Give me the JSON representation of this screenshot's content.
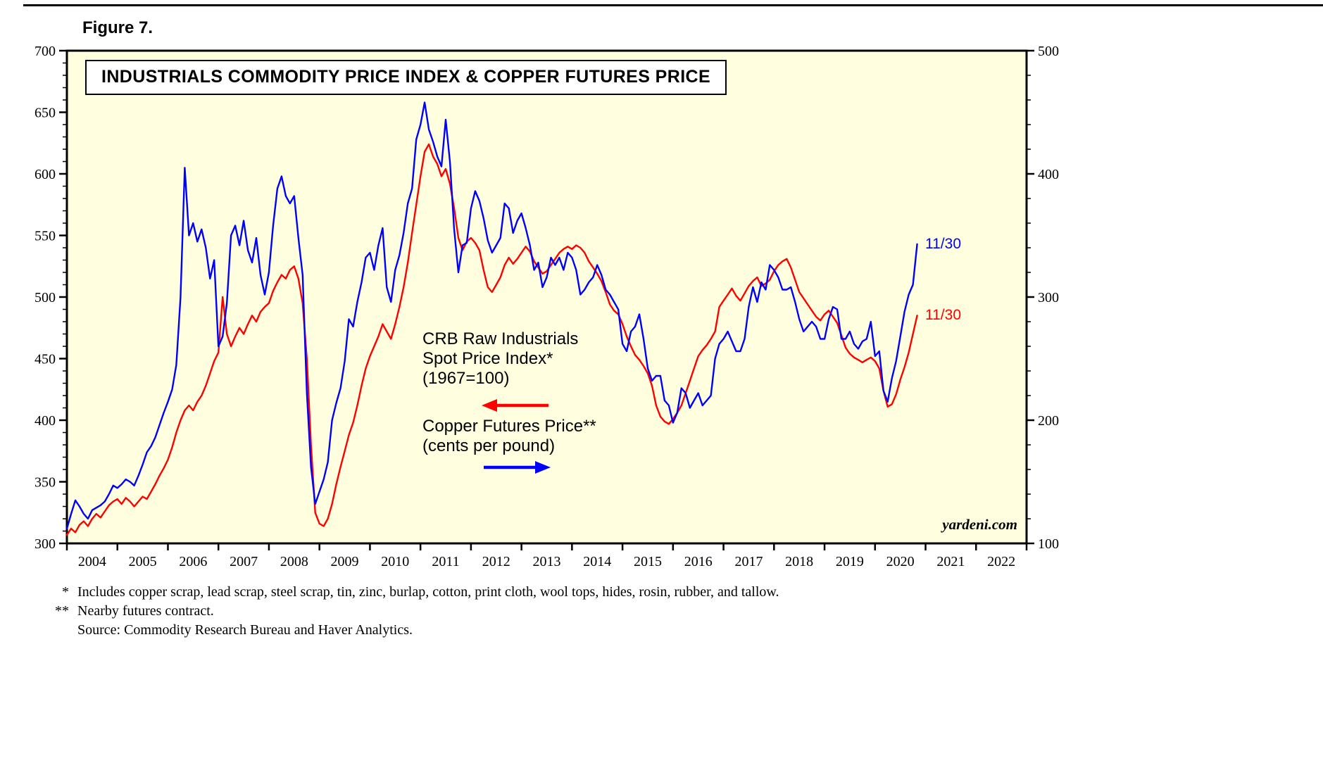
{
  "figure_label": "Figure 7.",
  "title": "INDUSTRIALS COMMODITY PRICE INDEX & COPPER FUTURES PRICE",
  "watermark": "yardeni.com",
  "annotations": {
    "red_series_label_lines": [
      "CRB Raw Industrials",
      "Spot Price Index*",
      "(1967=100)"
    ],
    "blue_series_label_lines": [
      "Copper Futures Price**",
      "(cents per pound)"
    ],
    "red_end_label": "11/30",
    "blue_end_label": "11/30"
  },
  "footnotes": [
    {
      "marker": "*",
      "text": "Includes copper scrap, lead scrap, steel scrap, tin, zinc, burlap, cotton, print cloth, wool tops, hides, rosin, rubber, and tallow."
    },
    {
      "marker": "**",
      "text": "Nearby futures contract."
    },
    {
      "marker": "",
      "text": "Source: Commodity Research Bureau and Haver Analytics."
    }
  ],
  "colors": {
    "red": "#FF0000",
    "blue": "#0000FF",
    "plot_bg": "#FFFFE0",
    "axis": "#000000"
  },
  "chart_data": {
    "type": "line",
    "title": "INDUSTRIALS COMMODITY PRICE INDEX & COPPER FUTURES PRICE",
    "x_start_year": 2004,
    "x_interval_months": 1,
    "x_axis": {
      "range": [
        2004,
        2023
      ],
      "tick_years": [
        2004,
        2005,
        2006,
        2007,
        2008,
        2009,
        2010,
        2011,
        2012,
        2013,
        2014,
        2015,
        2016,
        2017,
        2018,
        2019,
        2020,
        2021,
        2022
      ]
    },
    "left_axis": {
      "label": "CRB Raw Industrials Spot Price Index (1967=100)",
      "range": [
        300,
        700
      ],
      "major_step": 50,
      "minor_step": 10
    },
    "right_axis": {
      "label": "Copper Futures Price (cents per pound)",
      "range": [
        100,
        500
      ],
      "major_step": 100,
      "minor_step": 20
    },
    "grid": false,
    "series": [
      {
        "name": "CRB Raw Industrials Spot Price Index (1967=100)",
        "axis": "left",
        "color": "#FF0000",
        "last_point_date": "11/30",
        "values": [
          307,
          312,
          309,
          315,
          318,
          314,
          320,
          324,
          321,
          326,
          331,
          334,
          336,
          332,
          337,
          334,
          330,
          334,
          338,
          336,
          342,
          348,
          355,
          361,
          368,
          378,
          390,
          400,
          408,
          412,
          408,
          415,
          420,
          428,
          438,
          448,
          455,
          500,
          470,
          460,
          468,
          475,
          470,
          478,
          485,
          480,
          488,
          492,
          495,
          505,
          512,
          518,
          515,
          522,
          525,
          515,
          495,
          450,
          380,
          325,
          316,
          314,
          320,
          332,
          348,
          362,
          375,
          388,
          398,
          412,
          428,
          442,
          452,
          460,
          468,
          478,
          472,
          466,
          478,
          492,
          508,
          528,
          552,
          575,
          598,
          618,
          624,
          614,
          608,
          598,
          604,
          592,
          572,
          548,
          538,
          545,
          548,
          544,
          538,
          522,
          508,
          504,
          510,
          516,
          526,
          532,
          527,
          531,
          536,
          541,
          537,
          529,
          524,
          519,
          521,
          526,
          531,
          536,
          539,
          541,
          539,
          542,
          540,
          536,
          529,
          524,
          519,
          513,
          504,
          494,
          489,
          486,
          478,
          468,
          460,
          453,
          449,
          444,
          438,
          428,
          412,
          403,
          399,
          397,
          401,
          406,
          412,
          422,
          432,
          442,
          452,
          457,
          461,
          466,
          472,
          492,
          497,
          502,
          507,
          501,
          497,
          503,
          509,
          513,
          516,
          509,
          511,
          514,
          521,
          526,
          529,
          531,
          524,
          514,
          504,
          499,
          494,
          489,
          484,
          481,
          486,
          489,
          484,
          479,
          469,
          459,
          454,
          451,
          449,
          447,
          449,
          451,
          448,
          442,
          424,
          411,
          413,
          421,
          433,
          443,
          455,
          470,
          485
        ]
      },
      {
        "name": "Copper Futures Price (cents per pound)",
        "axis": "right",
        "color": "#0000FF",
        "last_point_date": "11/30",
        "values": [
          112,
          124,
          135,
          130,
          124,
          120,
          127,
          129,
          131,
          134,
          140,
          147,
          145,
          148,
          152,
          150,
          147,
          155,
          164,
          174,
          179,
          186,
          196,
          206,
          215,
          225,
          245,
          300,
          405,
          350,
          360,
          345,
          355,
          340,
          315,
          330,
          260,
          268,
          295,
          350,
          358,
          342,
          362,
          338,
          328,
          348,
          318,
          302,
          320,
          358,
          388,
          398,
          382,
          376,
          382,
          348,
          318,
          222,
          162,
          132,
          142,
          152,
          166,
          200,
          214,
          226,
          248,
          282,
          276,
          296,
          312,
          332,
          336,
          322,
          342,
          356,
          308,
          296,
          322,
          334,
          352,
          376,
          388,
          428,
          440,
          458,
          436,
          426,
          414,
          406,
          444,
          410,
          355,
          320,
          342,
          344,
          372,
          386,
          378,
          364,
          346,
          336,
          342,
          348,
          376,
          372,
          352,
          362,
          368,
          356,
          342,
          322,
          328,
          308,
          316,
          332,
          326,
          332,
          322,
          336,
          332,
          322,
          302,
          306,
          312,
          316,
          326,
          318,
          306,
          302,
          296,
          290,
          262,
          256,
          272,
          276,
          286,
          266,
          242,
          232,
          236,
          236,
          216,
          212,
          198,
          206,
          226,
          222,
          210,
          216,
          222,
          212,
          216,
          220,
          250,
          262,
          266,
          272,
          264,
          256,
          256,
          266,
          292,
          308,
          296,
          312,
          306,
          326,
          322,
          316,
          306,
          306,
          308,
          296,
          282,
          272,
          276,
          280,
          276,
          266,
          266,
          282,
          292,
          290,
          266,
          266,
          272,
          262,
          258,
          264,
          266,
          280,
          252,
          256,
          224,
          215,
          234,
          248,
          268,
          288,
          302,
          310,
          343
        ]
      }
    ]
  }
}
